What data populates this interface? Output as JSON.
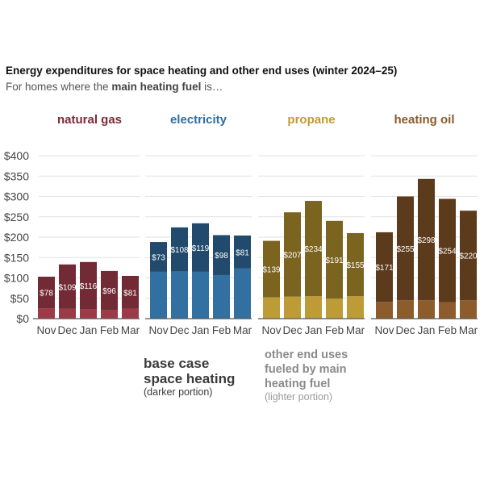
{
  "title": "Energy expenditures for space heating and other end uses (winter 2024–25)",
  "subtitle": {
    "prefix": "For homes where the ",
    "bold": "main heating fuel",
    "suffix": " is…"
  },
  "legend": {
    "dark": {
      "lines": [
        "base case",
        "space heating"
      ],
      "note": "(darker portion)"
    },
    "light": {
      "lines": [
        "other end uses",
        "fueled by main",
        "heating fuel"
      ],
      "note": "(lighter portion)"
    }
  },
  "chart_data": {
    "type": "bar",
    "stacked": true,
    "title": "Energy expenditures for space heating and other end uses (winter 2024–25)",
    "subtitle": "For homes where the main heating fuel is…",
    "xlabel": "",
    "ylabel": "",
    "ylim": [
      0,
      400
    ],
    "yticks": [
      0,
      50,
      100,
      150,
      200,
      250,
      300,
      350,
      400
    ],
    "ytick_labels": [
      "$0",
      "$50",
      "$100",
      "$150",
      "$200",
      "$250",
      "$300",
      "$350",
      "$400"
    ],
    "grid": true,
    "categories": [
      "Nov",
      "Dec",
      "Jan",
      "Feb",
      "Mar"
    ],
    "panels": [
      {
        "name": "natural gas",
        "color_dark": "#722a35",
        "color_light": "#9c3a48",
        "series": [
          {
            "name": "other end uses fueled by main heating fuel",
            "values": [
              25,
              24,
              23,
              21,
              24
            ]
          },
          {
            "name": "base case space heating",
            "values": [
              78,
              109,
              116,
              96,
              81
            ]
          }
        ],
        "labels": [
          "$78",
          "$109",
          "$116",
          "$96",
          "$81"
        ]
      },
      {
        "name": "electricity",
        "color_dark": "#214a6c",
        "color_light": "#3170a0",
        "series": [
          {
            "name": "other end uses fueled by main heating fuel",
            "values": [
              115,
              116,
              115,
              107,
              123
            ]
          },
          {
            "name": "base case space heating",
            "values": [
              73,
              108,
              119,
              98,
              81
            ]
          }
        ],
        "labels": [
          "$73",
          "$108",
          "$119",
          "$98",
          "$81"
        ]
      },
      {
        "name": "propane",
        "color_dark": "#7a6420",
        "color_light": "#bd9b36",
        "series": [
          {
            "name": "other end uses fueled by main heating fuel",
            "values": [
              52,
              54,
              55,
              49,
              55
            ]
          },
          {
            "name": "base case space heating",
            "values": [
              139,
              207,
              234,
              191,
              155
            ]
          }
        ],
        "labels": [
          "$139",
          "$207",
          "$234",
          "$191",
          "$155"
        ]
      },
      {
        "name": "heating oil",
        "color_dark": "#5c3b1c",
        "color_light": "#8c5c2c",
        "series": [
          {
            "name": "other end uses fueled by main heating fuel",
            "values": [
              41,
              45,
              45,
              40,
              45
            ]
          },
          {
            "name": "base case space heating",
            "values": [
              171,
              255,
              298,
              254,
              220
            ]
          }
        ],
        "labels": [
          "$171",
          "$255",
          "$298",
          "$254",
          "$220"
        ]
      }
    ],
    "panel_title_colors": [
      "#7a2a35",
      "#2f6ea3",
      "#c29a2e",
      "#8b5a2b"
    ]
  }
}
